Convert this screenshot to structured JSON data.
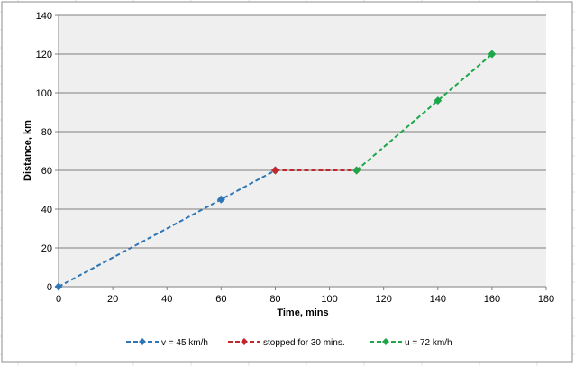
{
  "chart_data": {
    "type": "line",
    "xlabel": "Time, mins",
    "ylabel": "Distance, km",
    "xlim": [
      0,
      180
    ],
    "ylim": [
      0,
      140
    ],
    "xticks": [
      0,
      20,
      40,
      60,
      80,
      100,
      120,
      140,
      160,
      180
    ],
    "yticks": [
      0,
      20,
      40,
      60,
      80,
      100,
      120,
      140
    ],
    "grid": "horizontal",
    "plot_background": "#efefef",
    "legend_position": "bottom",
    "series": [
      {
        "name": "v = 45 km/h",
        "color": "#2e75b6",
        "marker": "diamond",
        "style": "dashed",
        "points": [
          [
            0,
            0
          ],
          [
            60,
            45
          ],
          [
            80,
            60
          ]
        ]
      },
      {
        "name": "stopped for 30 mins.",
        "color": "#c0282d",
        "marker": "diamond",
        "style": "dashed",
        "points": [
          [
            80,
            60
          ],
          [
            110,
            60
          ]
        ]
      },
      {
        "name": "u = 72 km/h",
        "color": "#1ea64b",
        "marker": "diamond",
        "style": "dashed",
        "points": [
          [
            110,
            60
          ],
          [
            140,
            96
          ],
          [
            160,
            120
          ]
        ]
      }
    ]
  }
}
